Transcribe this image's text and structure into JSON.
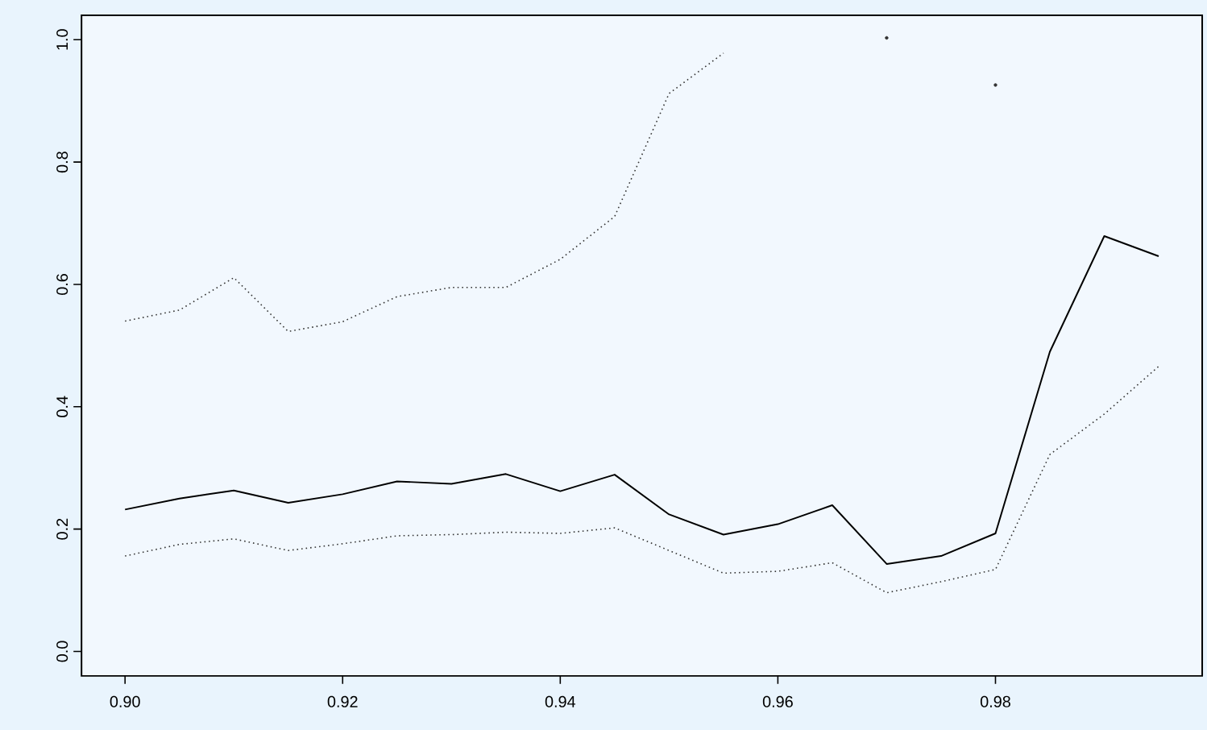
{
  "chart_data": {
    "type": "line",
    "x": [
      0.9,
      0.905,
      0.91,
      0.915,
      0.92,
      0.925,
      0.93,
      0.935,
      0.94,
      0.945,
      0.95,
      0.955,
      0.96,
      0.965,
      0.97,
      0.975,
      0.98,
      0.985,
      0.99,
      0.995
    ],
    "series": [
      {
        "color": "#000000",
        "line_style": "solid",
        "values": [
          0.232,
          0.25,
          0.263,
          0.243,
          0.257,
          0.278,
          0.274,
          0.29,
          0.262,
          0.289,
          0.224,
          0.191,
          0.208,
          0.239,
          0.143,
          0.156,
          0.193,
          0.49,
          0.679,
          0.646
        ]
      },
      {
        "color": "#333333",
        "line_style": "dotted",
        "values": [
          0.156,
          0.175,
          0.184,
          0.165,
          0.176,
          0.189,
          0.191,
          0.195,
          0.193,
          0.202,
          0.165,
          0.128,
          0.131,
          0.145,
          0.096,
          0.114,
          0.134,
          0.322,
          0.388,
          0.466
        ]
      },
      {
        "color": "#333333",
        "line_style": "dotted",
        "values": [
          0.54,
          0.558,
          0.611,
          0.523,
          0.539,
          0.58,
          0.595,
          0.595,
          0.641,
          0.711,
          0.912,
          0.978,
          null,
          null,
          1.003,
          null,
          0.926,
          null,
          null,
          null
        ]
      }
    ],
    "xlim": [
      0.896,
      0.999
    ],
    "ylim": [
      -0.04,
      1.04
    ],
    "xticks": [
      {
        "value": 0.9,
        "label": "0.90"
      },
      {
        "value": 0.92,
        "label": "0.92"
      },
      {
        "value": 0.94,
        "label": "0.94"
      },
      {
        "value": 0.96,
        "label": "0.96"
      },
      {
        "value": 0.98,
        "label": "0.98"
      }
    ],
    "yticks": [
      {
        "value": 0.0,
        "label": "0.0"
      },
      {
        "value": 0.2,
        "label": "0.2"
      },
      {
        "value": 0.4,
        "label": "0.4"
      },
      {
        "value": 0.6,
        "label": "0.6"
      },
      {
        "value": 0.8,
        "label": "0.8"
      },
      {
        "value": 1.0,
        "label": "1.0"
      }
    ],
    "grid": false,
    "marker": "none"
  }
}
